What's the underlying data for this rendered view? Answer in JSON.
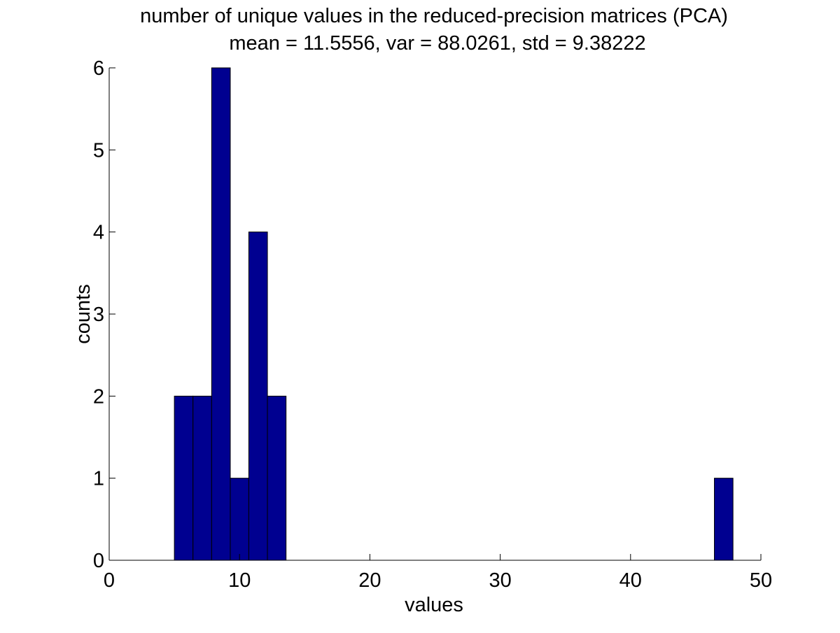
{
  "chart_data": {
    "type": "bar",
    "subtype": "histogram",
    "title": "number of unique values in the reduced-precision matrices (PCA)",
    "subtitle": "mean = 11.5556, var = 88.0261, std = 9.38222",
    "xlabel": "values",
    "ylabel": "counts",
    "xlim": [
      0,
      50
    ],
    "ylim": [
      0,
      6
    ],
    "xticks": [
      "0",
      "10",
      "20",
      "30",
      "40",
      "50"
    ],
    "yticks": [
      "0",
      "1",
      "2",
      "3",
      "4",
      "5",
      "6"
    ],
    "grid": false,
    "legend": "none",
    "bar_color": "#000090",
    "bar_edge_color": "#000000",
    "bins": [
      {
        "x0": 5.0,
        "x1": 6.43,
        "count": 2
      },
      {
        "x0": 6.43,
        "x1": 7.86,
        "count": 2
      },
      {
        "x0": 7.86,
        "x1": 9.29,
        "count": 6
      },
      {
        "x0": 9.29,
        "x1": 10.71,
        "count": 1
      },
      {
        "x0": 10.71,
        "x1": 12.14,
        "count": 4
      },
      {
        "x0": 12.14,
        "x1": 13.57,
        "count": 2
      },
      {
        "x0": 46.43,
        "x1": 47.86,
        "count": 1
      }
    ]
  }
}
